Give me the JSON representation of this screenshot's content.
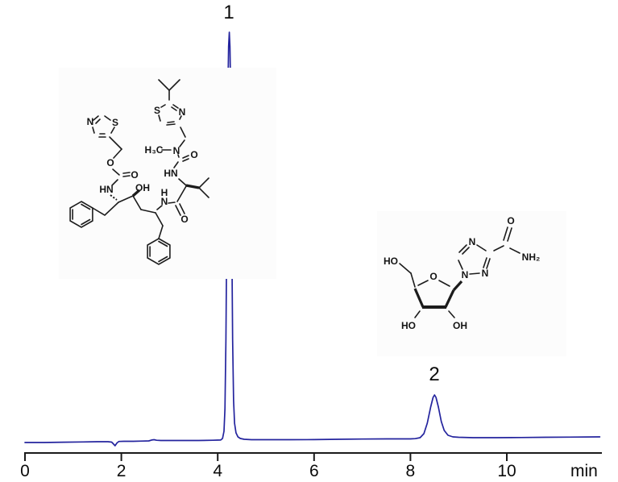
{
  "chart_data": {
    "type": "line",
    "title": "",
    "xlabel": "min",
    "x_ticks": [
      0,
      2,
      4,
      6,
      8,
      10
    ],
    "x_range": [
      0,
      11.93
    ],
    "grid": false,
    "legend": "none",
    "trace_color": "#24249e",
    "axis_color": "#1a1a1a",
    "peaks": [
      {
        "label": "1",
        "retention_time_min": 4.2,
        "relative_height": 1.0
      },
      {
        "label": "2",
        "retention_time_min": 8.5,
        "relative_height": 0.11
      }
    ],
    "trace": [
      [
        0.0,
        -0.002
      ],
      [
        0.4,
        -0.002
      ],
      [
        0.8,
        -0.0012
      ],
      [
        1.2,
        -0.0006
      ],
      [
        1.5,
        0.0
      ],
      [
        1.72,
        0.0
      ],
      [
        1.8,
        -0.001
      ],
      [
        1.84,
        -0.006
      ],
      [
        1.87,
        -0.0098
      ],
      [
        1.91,
        -0.003
      ],
      [
        1.95,
        0.0005
      ],
      [
        2.05,
        0.001
      ],
      [
        2.25,
        0.001
      ],
      [
        2.45,
        0.0016
      ],
      [
        2.57,
        0.002
      ],
      [
        2.63,
        0.0041
      ],
      [
        2.68,
        0.0049
      ],
      [
        2.73,
        0.0035
      ],
      [
        2.82,
        0.003
      ],
      [
        3.0,
        0.003
      ],
      [
        3.3,
        0.003
      ],
      [
        3.6,
        0.003
      ],
      [
        3.9,
        0.0035
      ],
      [
        4.0,
        0.0039
      ],
      [
        4.06,
        0.0041
      ],
      [
        4.1,
        0.0079
      ],
      [
        4.13,
        0.0256
      ],
      [
        4.15,
        0.0807
      ],
      [
        4.17,
        0.25
      ],
      [
        4.19,
        0.55
      ],
      [
        4.21,
        0.85
      ],
      [
        4.225,
        0.965
      ],
      [
        4.24,
        1.0
      ],
      [
        4.255,
        0.965
      ],
      [
        4.27,
        0.85
      ],
      [
        4.29,
        0.55
      ],
      [
        4.31,
        0.25
      ],
      [
        4.33,
        0.1004
      ],
      [
        4.35,
        0.0453
      ],
      [
        4.38,
        0.0217
      ],
      [
        4.42,
        0.0118
      ],
      [
        4.47,
        0.0079
      ],
      [
        4.55,
        0.0059
      ],
      [
        4.7,
        0.0049
      ],
      [
        5.0,
        0.0049
      ],
      [
        5.5,
        0.0049
      ],
      [
        6.0,
        0.0051
      ],
      [
        6.5,
        0.0059
      ],
      [
        7.0,
        0.0064
      ],
      [
        7.5,
        0.0069
      ],
      [
        8.0,
        0.0069
      ],
      [
        8.1,
        0.0074
      ],
      [
        8.2,
        0.0098
      ],
      [
        8.28,
        0.0197
      ],
      [
        8.35,
        0.0453
      ],
      [
        8.42,
        0.0846
      ],
      [
        8.47,
        0.1083
      ],
      [
        8.5,
        0.1142
      ],
      [
        8.53,
        0.1083
      ],
      [
        8.58,
        0.0846
      ],
      [
        8.64,
        0.0492
      ],
      [
        8.7,
        0.0276
      ],
      [
        8.78,
        0.0157
      ],
      [
        8.88,
        0.0118
      ],
      [
        9.0,
        0.0108
      ],
      [
        9.3,
        0.0098
      ],
      [
        9.8,
        0.0098
      ],
      [
        10.3,
        0.0103
      ],
      [
        10.8,
        0.0108
      ],
      [
        11.3,
        0.0113
      ],
      [
        11.93,
        0.0118
      ]
    ]
  },
  "structures": {
    "ritonavir": {
      "atoms": {
        "n_thiazole1": "N",
        "s_thiazole1": "S",
        "s_thiazole2": "S",
        "n_thiazole2": "N",
        "h3c": "H₃C",
        "n_methyl": "N",
        "o_urea": "O",
        "hn_urea": "HN",
        "o_ester": "O",
        "o_carbamate": "O",
        "hn_carbamate": "HN",
        "oh": "OH",
        "h_amide": "H",
        "n_amide": "N",
        "o_amide": "O"
      }
    },
    "ribavirin": {
      "atoms": {
        "ho_top": "HO",
        "o_ring": "O",
        "ho_bottom": "HO",
        "oh_bottom": "OH",
        "n1": "N",
        "n2": "N",
        "n4": "N",
        "o_amide": "O",
        "nh2": "NH₂"
      }
    }
  }
}
